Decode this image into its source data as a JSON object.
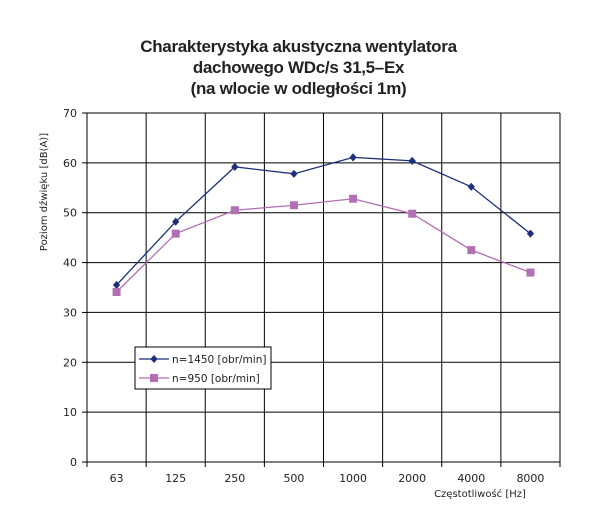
{
  "chart_data": {
    "type": "line",
    "title_lines": [
      "Charakterystyka akustyczna wentylatora",
      "dachowego WDc/s 31,5–Ex",
      "(na wlocie w odległości 1m)"
    ],
    "xlabel": "Częstotliwość [Hz]",
    "ylabel": "Poziom dźwięku [dB(A)]",
    "categories": [
      "63",
      "125",
      "250",
      "500",
      "1000",
      "2000",
      "4000",
      "8000"
    ],
    "yticks": [
      "0",
      "10",
      "20",
      "30",
      "40",
      "50",
      "60",
      "70"
    ],
    "ylim": [
      0,
      70
    ],
    "grid": true,
    "legend_position": "lower-left",
    "series": [
      {
        "name": "n=1450 [obr/min]",
        "color": "#1f2f7a",
        "marker": "diamond",
        "values": [
          35.5,
          48.2,
          59.2,
          57.8,
          61.1,
          60.4,
          55.2,
          45.8
        ]
      },
      {
        "name": "n=950 [obr/min]",
        "color": "#b36fb3",
        "marker": "square",
        "values": [
          34.1,
          45.8,
          50.5,
          51.5,
          52.8,
          49.8,
          42.5,
          38.0
        ]
      }
    ]
  }
}
